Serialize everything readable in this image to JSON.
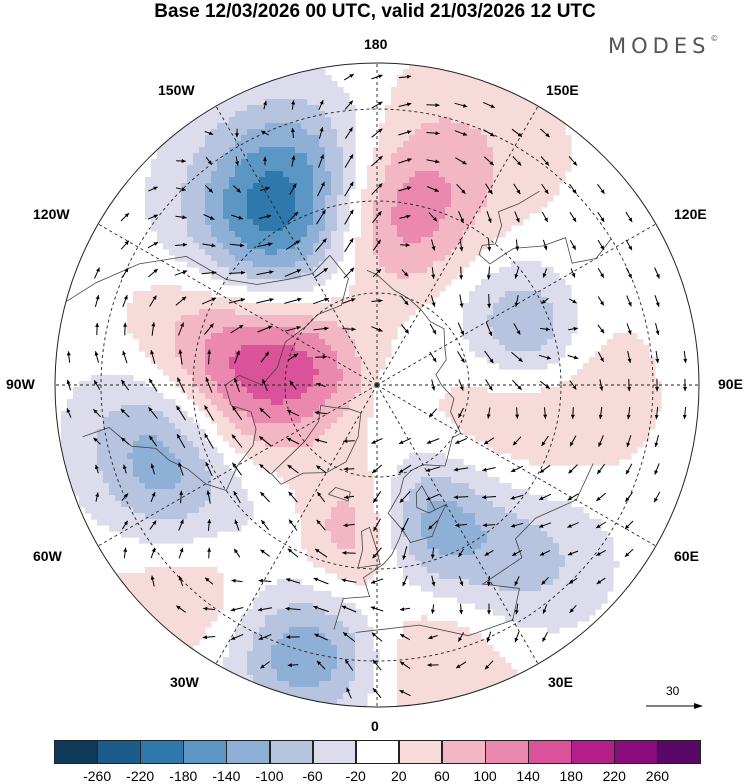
{
  "title": "Base 12/03/2026 00 UTC, valid 21/03/2026 12 UTC",
  "brand": "MODES",
  "brand_mark": "©",
  "longitude_labels": {
    "top": "180",
    "top_left": "150W",
    "top_right": "150E",
    "upper_left": "120W",
    "upper_right": "120E",
    "left": "90W",
    "right": "90E",
    "lower_left": "60W",
    "lower_right": "60E",
    "bottom_left": "30W",
    "bottom_right": "30E",
    "bottom": "0"
  },
  "reference_vector": {
    "label": "30"
  },
  "colorbar": {
    "ticks": [
      "-260",
      "-220",
      "-180",
      "-140",
      "-100",
      "-60",
      "-20",
      "20",
      "60",
      "100",
      "140",
      "180",
      "220",
      "260"
    ],
    "colors": [
      "#103a5a",
      "#1d5c8a",
      "#2f78ac",
      "#5b96c4",
      "#8fb0d6",
      "#b7c4e0",
      "#dcdced",
      "#ffffff",
      "#f7dada",
      "#f2b6c4",
      "#ea88ad",
      "#d9529a",
      "#b51f8a",
      "#8b0c7d",
      "#5a0868"
    ]
  },
  "chart_data": {
    "type": "heatmap",
    "title": "Base 12/03/2026 00 UTC, valid 21/03/2026 12 UTC",
    "projection": "north polar stereographic",
    "field": "anomaly with wind vectors",
    "levels": [
      -260,
      -220,
      -180,
      -140,
      -100,
      -60,
      -20,
      20,
      60,
      100,
      140,
      180,
      220,
      260
    ],
    "longitude_labels": [
      "180",
      "150E",
      "120E",
      "90E",
      "60E",
      "30E",
      "0",
      "30W",
      "60W",
      "90W",
      "120W",
      "150W"
    ],
    "anomalies": [
      {
        "lon": -90,
        "lat": 55,
        "value": 240,
        "spread": 15
      },
      {
        "lon": -150,
        "lat": 50,
        "value": -200,
        "spread": 14
      },
      {
        "lon": 175,
        "lat": 55,
        "value": 170,
        "spread": 13
      },
      {
        "lon": -78,
        "lat": 45,
        "value": -220,
        "spread": 13
      },
      {
        "lon": -55,
        "lat": 38,
        "value": -120,
        "spread": 12
      },
      {
        "lon": -30,
        "lat": 55,
        "value": -80,
        "spread": 10
      },
      {
        "lon": -10,
        "lat": 58,
        "value": 150,
        "spread": 10
      },
      {
        "lon": 18,
        "lat": 58,
        "value": -150,
        "spread": 10
      },
      {
        "lon": -45,
        "lat": 35,
        "value": 140,
        "spread": 14
      },
      {
        "lon": -15,
        "lat": 30,
        "value": -170,
        "spread": 11
      },
      {
        "lon": 10,
        "lat": 30,
        "value": 80,
        "spread": 13
      },
      {
        "lon": 40,
        "lat": 40,
        "value": -90,
        "spread": 12
      },
      {
        "lon": 110,
        "lat": 55,
        "value": -110,
        "spread": 8
      },
      {
        "lon": 85,
        "lat": 55,
        "value": 60,
        "spread": 18
      },
      {
        "lon": 140,
        "lat": 60,
        "value": -60,
        "spread": 14
      },
      {
        "lon": -115,
        "lat": 75,
        "value": 80,
        "spread": 10
      },
      {
        "lon": 160,
        "lat": 35,
        "value": 50,
        "spread": 15
      },
      {
        "lon": -160,
        "lat": 38,
        "value": -70,
        "spread": 12
      }
    ]
  }
}
